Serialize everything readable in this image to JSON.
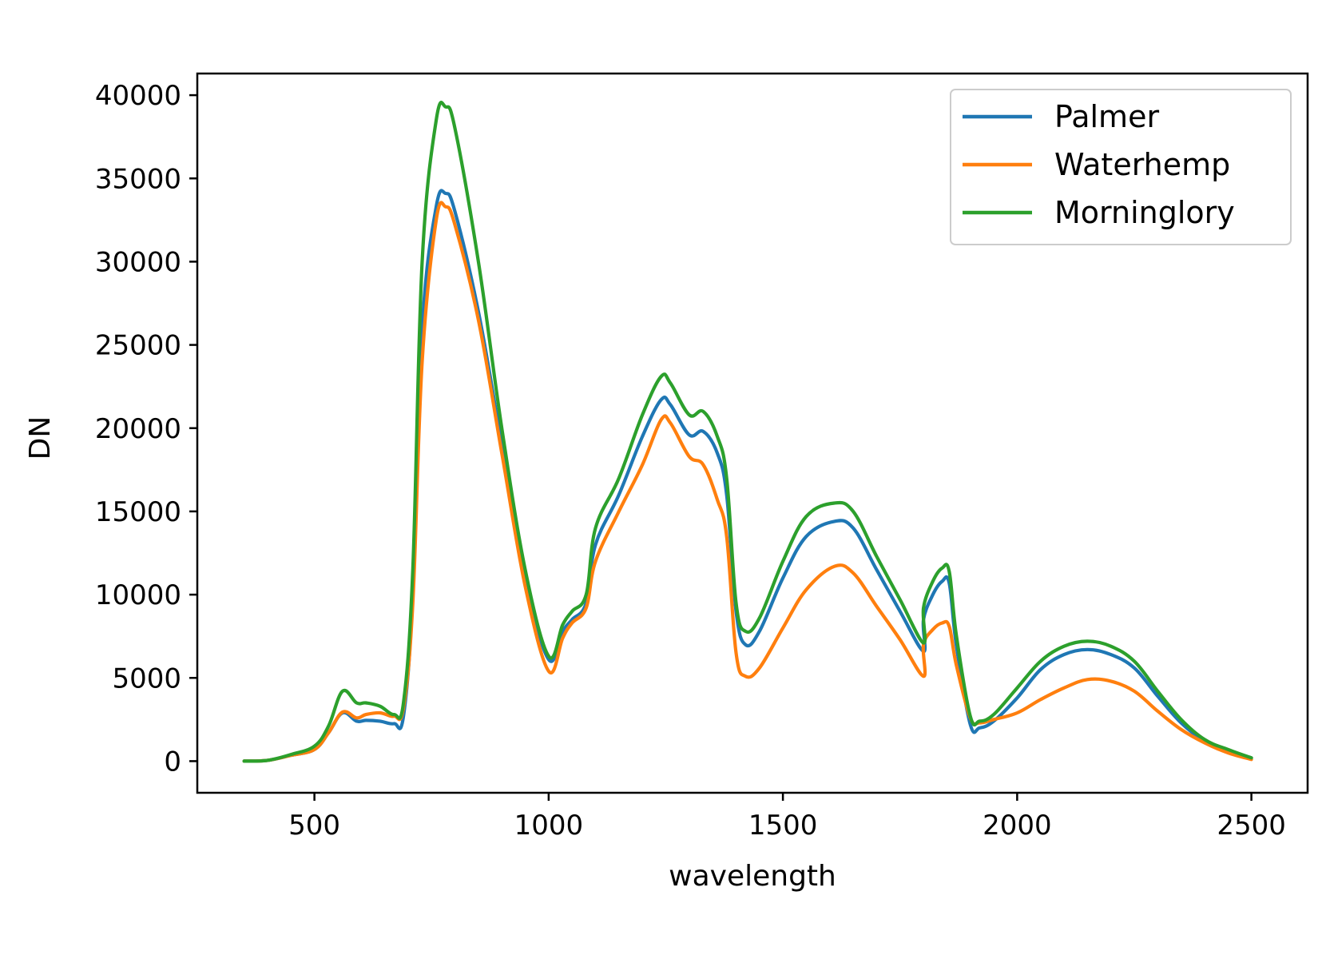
{
  "chart_data": {
    "type": "line",
    "title": "",
    "xlabel": "wavelength",
    "ylabel": "DN",
    "xlim": [
      250,
      2620
    ],
    "ylim": [
      -1900,
      41300
    ],
    "xticks": [
      500,
      1000,
      1500,
      2000,
      2500
    ],
    "yticks": [
      0,
      5000,
      10000,
      15000,
      20000,
      25000,
      30000,
      35000,
      40000
    ],
    "xtick_labels": [
      "500",
      "1000",
      "1500",
      "2000",
      "2500"
    ],
    "ytick_labels": [
      "0",
      "5000",
      "10000",
      "15000",
      "20000",
      "25000",
      "30000",
      "35000",
      "40000"
    ],
    "grid": false,
    "legend_position": "top-right",
    "legend": [
      "Palmer",
      "Waterhemp",
      "Morninglory"
    ],
    "colors": {
      "Palmer": "#1f77b4",
      "Waterhemp": "#ff7f0e",
      "Morninglory": "#2ca02c"
    },
    "series": [
      {
        "name": "Palmer",
        "x": [
          350,
          400,
          450,
          500,
          530,
          560,
          590,
          610,
          640,
          670,
          690,
          710,
          730,
          760,
          780,
          800,
          850,
          900,
          950,
          1000,
          1030,
          1050,
          1080,
          1100,
          1150,
          1200,
          1240,
          1260,
          1300,
          1330,
          1360,
          1380,
          1400,
          1420,
          1450,
          1500,
          1550,
          1610,
          1650,
          1700,
          1750,
          1800,
          1800,
          1820,
          1840,
          1855,
          1870,
          1900,
          1920,
          1950,
          2000,
          2050,
          2100,
          2150,
          2200,
          2250,
          2300,
          2350,
          2400,
          2450,
          2500
        ],
        "y": [
          0,
          50,
          350,
          700,
          1700,
          2900,
          2400,
          2450,
          2400,
          2250,
          2700,
          10000,
          26000,
          33300,
          34100,
          33000,
          27000,
          19000,
          11000,
          6100,
          7800,
          8500,
          9500,
          13000,
          16000,
          19500,
          21700,
          21400,
          19600,
          19800,
          18500,
          16000,
          9000,
          7000,
          7800,
          11000,
          13500,
          14400,
          14000,
          11500,
          9000,
          6600,
          8500,
          10000,
          10800,
          10700,
          7000,
          2200,
          2000,
          2400,
          3800,
          5500,
          6400,
          6700,
          6400,
          5600,
          3900,
          2300,
          1200,
          600,
          200
        ]
      },
      {
        "name": "Waterhemp",
        "x": [
          350,
          400,
          450,
          500,
          530,
          560,
          590,
          610,
          640,
          670,
          690,
          710,
          730,
          760,
          780,
          800,
          850,
          900,
          950,
          1000,
          1030,
          1050,
          1080,
          1100,
          1150,
          1200,
          1240,
          1260,
          1300,
          1330,
          1360,
          1380,
          1400,
          1420,
          1450,
          1500,
          1550,
          1610,
          1650,
          1700,
          1750,
          1800,
          1800,
          1820,
          1840,
          1855,
          1870,
          1900,
          1920,
          1950,
          2000,
          2050,
          2100,
          2150,
          2200,
          2250,
          2300,
          2350,
          2400,
          2450,
          2500
        ],
        "y": [
          0,
          50,
          350,
          700,
          1700,
          2950,
          2600,
          2800,
          2900,
          2700,
          3200,
          9500,
          24000,
          32500,
          33300,
          32200,
          26500,
          18500,
          10500,
          5400,
          7400,
          8300,
          9200,
          12000,
          15000,
          17800,
          20500,
          20300,
          18300,
          17800,
          15700,
          13500,
          6500,
          5100,
          5600,
          8000,
          10300,
          11700,
          11300,
          9300,
          7300,
          5100,
          7000,
          7900,
          8300,
          8100,
          5800,
          2600,
          2300,
          2500,
          2900,
          3700,
          4400,
          4900,
          4800,
          4200,
          3000,
          1900,
          1100,
          500,
          100
        ]
      },
      {
        "name": "Morninglory",
        "x": [
          350,
          400,
          450,
          500,
          530,
          560,
          590,
          610,
          640,
          670,
          690,
          710,
          730,
          760,
          780,
          800,
          850,
          900,
          950,
          1000,
          1030,
          1050,
          1080,
          1100,
          1150,
          1200,
          1240,
          1260,
          1300,
          1330,
          1360,
          1380,
          1400,
          1420,
          1450,
          1500,
          1550,
          1610,
          1650,
          1700,
          1750,
          1800,
          1800,
          1820,
          1840,
          1855,
          1870,
          1900,
          1920,
          1950,
          2000,
          2050,
          2100,
          2150,
          2200,
          2250,
          2300,
          2350,
          2400,
          2450,
          2500
        ],
        "y": [
          0,
          50,
          400,
          900,
          2100,
          4200,
          3500,
          3500,
          3300,
          2800,
          3500,
          11500,
          30000,
          38500,
          39300,
          38000,
          30000,
          20000,
          11500,
          6300,
          8200,
          9000,
          10000,
          14000,
          17000,
          20800,
          23100,
          22700,
          20800,
          21000,
          19500,
          17000,
          9500,
          7800,
          8600,
          12000,
          14700,
          15500,
          15000,
          12300,
          9700,
          7100,
          9200,
          10800,
          11600,
          11400,
          7600,
          2700,
          2400,
          2800,
          4400,
          6000,
          6900,
          7200,
          6900,
          6000,
          4200,
          2500,
          1300,
          700,
          200
        ]
      }
    ]
  }
}
